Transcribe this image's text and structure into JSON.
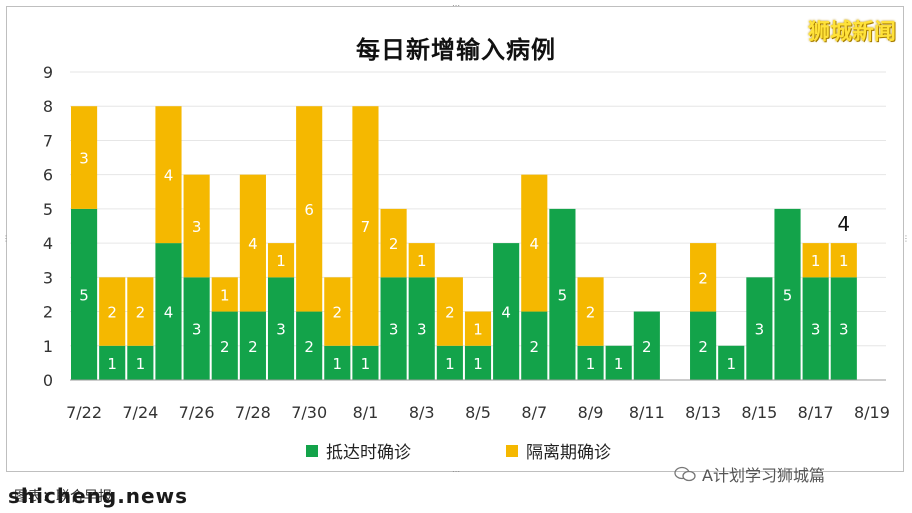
{
  "brand": "狮城新闻",
  "watermark": "A计划学习狮城篇",
  "site": "shicheng.news",
  "source_note": "图表：联合早报",
  "colors": {
    "arrival": "#13a34a",
    "quarantine": "#f5b800",
    "axis": "#444444",
    "grid": "#e6e6e6"
  },
  "chart_data": {
    "type": "bar",
    "stacked": true,
    "title": "每日新增输入病例",
    "ylim": [
      0,
      9
    ],
    "yticks": [
      0,
      1,
      2,
      3,
      4,
      5,
      6,
      7,
      8,
      9
    ],
    "grid": true,
    "legend_position": "bottom",
    "categories": [
      "7/22",
      "7/23",
      "7/24",
      "7/25",
      "7/26",
      "7/27",
      "7/28",
      "7/29",
      "7/30",
      "7/31",
      "8/1",
      "8/2",
      "8/3",
      "8/4",
      "8/5",
      "8/6",
      "8/7",
      "8/8",
      "8/9",
      "8/10",
      "8/11",
      "8/12",
      "8/13",
      "8/14",
      "8/15",
      "8/16",
      "8/17",
      "8/18",
      "8/19"
    ],
    "xtick_labels": [
      "7/22",
      "7/24",
      "7/26",
      "7/28",
      "7/30",
      "8/1",
      "8/3",
      "8/5",
      "8/7",
      "8/9",
      "8/11",
      "8/13",
      "8/15",
      "8/17",
      "8/19"
    ],
    "series": [
      {
        "name": "抵达时确诊",
        "values": [
          5,
          1,
          1,
          4,
          3,
          2,
          2,
          3,
          2,
          1,
          1,
          3,
          3,
          1,
          1,
          4,
          2,
          5,
          1,
          1,
          2,
          0,
          2,
          1,
          3,
          5,
          3,
          3,
          0
        ]
      },
      {
        "name": "隔离期确诊",
        "values": [
          3,
          2,
          2,
          4,
          3,
          1,
          4,
          1,
          6,
          2,
          7,
          2,
          1,
          2,
          1,
          0,
          4,
          0,
          2,
          0,
          0,
          0,
          2,
          0,
          0,
          0,
          1,
          1,
          0
        ]
      }
    ],
    "annotations": [
      {
        "category": "8/18",
        "text": "4"
      }
    ]
  }
}
